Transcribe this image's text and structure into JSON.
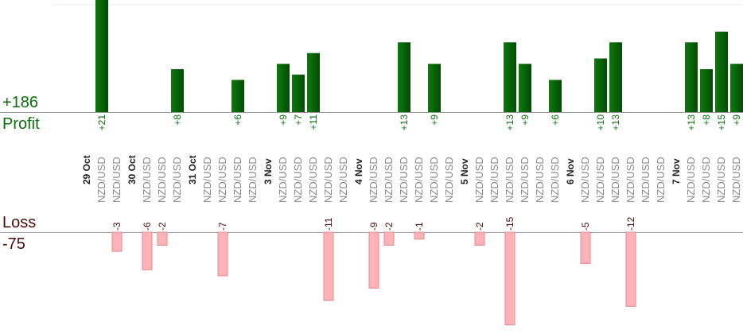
{
  "totals": {
    "profit_total": "+186",
    "profit_label": "Profit",
    "loss_label": "Loss",
    "loss_total": "-75"
  },
  "colors": {
    "profit_bar": "#0a6e0a",
    "profit_bar_dark": "#054a05",
    "profit_text": "#0a6e0a",
    "loss_bar": "#ffb3b8",
    "loss_bar_border": "#e58a90",
    "loss_text": "#4a0d0d",
    "date_text": "#222222",
    "pair_text": "#8a8a8a",
    "axis": "#999999"
  },
  "chart_data": {
    "type": "bar",
    "categories": [
      "29 Oct",
      "NZD/USD",
      "NZD/USD",
      "30 Oct",
      "NZD/USD",
      "NZD/USD",
      "NZD/USD",
      "31 Oct",
      "NZD/USD",
      "NZD/USD",
      "NZD/USD",
      "NZD/USD",
      "3 Nov",
      "NZD/USD",
      "NZD/USD",
      "NZD/USD",
      "NZD/USD",
      "NZD/USD",
      "4 Nov",
      "NZD/USD",
      "NZD/USD",
      "NZD/USD",
      "NZD/USD",
      "NZD/USD",
      "NZD/USD",
      "5 Nov",
      "NZD/USD",
      "NZD/USD",
      "NZD/USD",
      "NZD/USD",
      "NZD/USD",
      "NZD/USD",
      "6 Nov",
      "NZD/USD",
      "NZD/USD",
      "NZD/USD",
      "NZD/USD",
      "NZD/USD",
      "NZD/USD",
      "7 Nov",
      "NZD/USD",
      "NZD/USD",
      "NZD/USD",
      "NZD/USD",
      "NZD/USD",
      "NZD/USD"
    ],
    "date_flags": [
      true,
      false,
      false,
      true,
      false,
      false,
      false,
      true,
      false,
      false,
      false,
      false,
      true,
      false,
      false,
      false,
      false,
      false,
      true,
      false,
      false,
      false,
      false,
      false,
      false,
      true,
      false,
      false,
      false,
      false,
      false,
      false,
      true,
      false,
      false,
      false,
      false,
      false,
      false,
      true,
      false,
      false,
      false,
      false,
      false,
      false
    ],
    "series": [
      {
        "name": "Profit",
        "values": [
          null,
          21,
          null,
          null,
          null,
          null,
          8,
          null,
          null,
          null,
          6,
          null,
          null,
          9,
          7,
          11,
          null,
          null,
          null,
          null,
          null,
          13,
          null,
          9,
          null,
          null,
          null,
          null,
          13,
          9,
          null,
          6,
          null,
          null,
          10,
          13,
          null,
          null,
          null,
          null,
          13,
          8,
          15,
          9,
          6,
          null
        ]
      },
      {
        "name": "Loss",
        "values": [
          null,
          null,
          -3,
          null,
          -6,
          -2,
          null,
          null,
          null,
          -7,
          null,
          null,
          null,
          null,
          null,
          null,
          -11,
          null,
          null,
          -9,
          -2,
          null,
          -1,
          null,
          null,
          null,
          -2,
          null,
          -15,
          null,
          null,
          null,
          null,
          -5,
          null,
          null,
          -12,
          null,
          null,
          null,
          null,
          null,
          null,
          null,
          null,
          null
        ]
      }
    ]
  }
}
